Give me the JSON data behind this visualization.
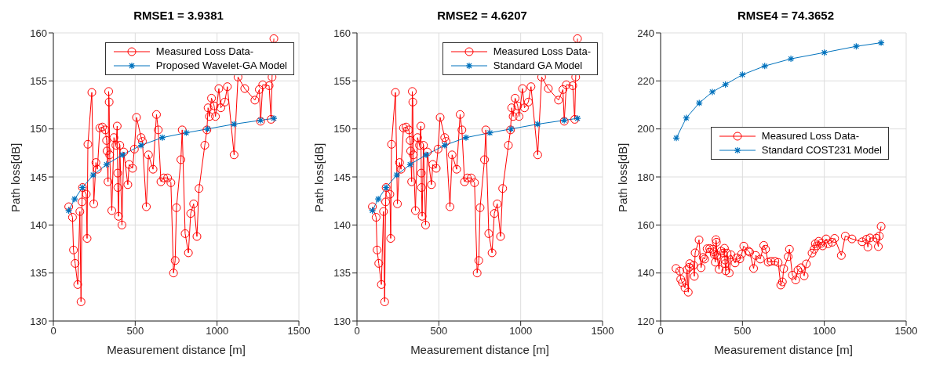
{
  "chart_data": [
    {
      "type": "line",
      "title": "RMSE1 = 3.9381",
      "xlabel": "Measurement distance [m]",
      "ylabel": "Path loss[dB]",
      "xlim": [
        0,
        1500
      ],
      "xticks": [
        0,
        500,
        1000,
        1500
      ],
      "ylim": [
        130,
        160
      ],
      "yticks": [
        130,
        135,
        140,
        145,
        150,
        155,
        160
      ],
      "grid": true,
      "legend": "top right",
      "series": [
        {
          "name": "Measured Loss Data-",
          "color": "#ff0000",
          "marker": "circle",
          "x": [
            94,
            117,
            123,
            133,
            149,
            162,
            169,
            175,
            178,
            201,
            206,
            211,
            235,
            247,
            260,
            269,
            284,
            300,
            317,
            325,
            328,
            334,
            338,
            341,
            344,
            357,
            370,
            382,
            390,
            393,
            394,
            398,
            406,
            419,
            430,
            455,
            463,
            484,
            495,
            508,
            536,
            544,
            568,
            581,
            609,
            630,
            641,
            657,
            674,
            698,
            718,
            734,
            744,
            752,
            779,
            787,
            805,
            825,
            839,
            857,
            877,
            890,
            925,
            938,
            945,
            954,
            966,
            982,
            990,
            1011,
            1023,
            1047,
            1063,
            1104,
            1128,
            1169,
            1231,
            1258,
            1266,
            1279,
            1318,
            1330,
            1336,
            1347
          ],
          "values": [
            141.9,
            140.8,
            137.4,
            136.0,
            133.8,
            141.4,
            132.0,
            142.4,
            143.9,
            143.2,
            138.6,
            148.4,
            153.8,
            142.2,
            146.5,
            145.8,
            150.1,
            150.2,
            149.9,
            148.8,
            147.7,
            144.5,
            153.9,
            152.8,
            147.3,
            141.5,
            149.1,
            148.3,
            150.3,
            145.4,
            143.9,
            140.9,
            148.3,
            140.0,
            147.6,
            144.2,
            146.3,
            145.9,
            147.9,
            151.2,
            149.1,
            148.7,
            141.9,
            147.3,
            145.8,
            151.5,
            149.9,
            144.5,
            144.9,
            144.9,
            144.4,
            135.0,
            136.3,
            141.8,
            146.8,
            149.9,
            139.1,
            137.1,
            141.2,
            142.2,
            138.8,
            143.8,
            148.3,
            149.9,
            152.2,
            151.3,
            153.2,
            152.4,
            151.3,
            154.2,
            152.2,
            152.8,
            154.4,
            147.3,
            155.4,
            154.2,
            153.0,
            154.1,
            150.8,
            154.6,
            154.5,
            151.0,
            155.4,
            159.4
          ]
        },
        {
          "name": "Proposed Wavelet-GA Model",
          "color": "#0072bd",
          "marker": "cross",
          "x": [
            94,
            130,
            178,
            243,
            325,
            422,
            536,
            666,
            812,
            942,
            1104,
            1266,
            1347
          ],
          "values": [
            141.5,
            142.7,
            143.9,
            145.2,
            146.3,
            147.3,
            148.3,
            149.1,
            149.6,
            150.0,
            150.5,
            150.9,
            151.1
          ]
        }
      ]
    },
    {
      "type": "line",
      "title": "RMSE2 = 4.6207",
      "xlabel": "Measurement distance [m]",
      "ylabel": "Path loss[dB]",
      "xlim": [
        0,
        1500
      ],
      "xticks": [
        0,
        500,
        1000,
        1500
      ],
      "ylim": [
        130,
        160
      ],
      "yticks": [
        130,
        135,
        140,
        145,
        150,
        155,
        160
      ],
      "grid": true,
      "legend": "top right",
      "series": [
        {
          "name": "Measured Loss Data-",
          "color": "#ff0000",
          "marker": "circle",
          "x": [
            94,
            117,
            123,
            133,
            149,
            162,
            169,
            175,
            178,
            201,
            206,
            211,
            235,
            247,
            260,
            269,
            284,
            300,
            317,
            325,
            328,
            334,
            338,
            341,
            344,
            357,
            370,
            382,
            390,
            393,
            394,
            398,
            406,
            419,
            430,
            455,
            463,
            484,
            495,
            508,
            536,
            544,
            568,
            581,
            609,
            630,
            641,
            657,
            674,
            698,
            718,
            734,
            744,
            752,
            779,
            787,
            805,
            825,
            839,
            857,
            877,
            890,
            925,
            938,
            945,
            954,
            966,
            982,
            990,
            1011,
            1023,
            1047,
            1063,
            1104,
            1128,
            1169,
            1231,
            1258,
            1266,
            1279,
            1318,
            1330,
            1336,
            1347
          ],
          "values": [
            141.9,
            140.8,
            137.4,
            136.0,
            133.8,
            141.4,
            132.0,
            142.4,
            143.9,
            143.2,
            138.6,
            148.4,
            153.8,
            142.2,
            146.5,
            145.8,
            150.1,
            150.2,
            149.9,
            148.8,
            147.7,
            144.5,
            153.9,
            152.8,
            147.3,
            141.5,
            149.1,
            148.3,
            150.3,
            145.4,
            143.9,
            140.9,
            148.3,
            140.0,
            147.6,
            144.2,
            146.3,
            145.9,
            147.9,
            151.2,
            149.1,
            148.7,
            141.9,
            147.3,
            145.8,
            151.5,
            149.9,
            144.5,
            144.9,
            144.9,
            144.4,
            135.0,
            136.3,
            141.8,
            146.8,
            149.9,
            139.1,
            137.1,
            141.2,
            142.2,
            138.8,
            143.8,
            148.3,
            149.9,
            152.2,
            151.3,
            153.2,
            152.4,
            151.3,
            154.2,
            152.2,
            152.8,
            154.4,
            147.3,
            155.4,
            154.2,
            153.0,
            154.1,
            150.8,
            154.6,
            154.5,
            151.0,
            155.4,
            159.4
          ]
        },
        {
          "name": "Standard GA Model",
          "color": "#0072bd",
          "marker": "cross",
          "x": [
            94,
            130,
            178,
            243,
            325,
            422,
            536,
            666,
            812,
            942,
            1104,
            1266,
            1347
          ],
          "values": [
            141.5,
            142.7,
            143.9,
            145.2,
            146.3,
            147.3,
            148.3,
            149.1,
            149.6,
            150.0,
            150.5,
            150.9,
            151.1
          ]
        }
      ]
    },
    {
      "type": "line",
      "title": "RMSE4 = 74.3652",
      "xlabel": "Measurement distance [m]",
      "ylabel": "Path loss[dB]",
      "xlim": [
        0,
        1500
      ],
      "xticks": [
        0,
        500,
        1000,
        1500
      ],
      "ylim": [
        120,
        240
      ],
      "yticks": [
        120,
        140,
        160,
        180,
        200,
        220,
        240
      ],
      "grid": true,
      "legend": "right",
      "series": [
        {
          "name": "Measured Loss Data-",
          "color": "#ff0000",
          "marker": "circle",
          "x": [
            94,
            117,
            123,
            133,
            149,
            162,
            169,
            175,
            178,
            201,
            206,
            211,
            235,
            247,
            260,
            269,
            284,
            300,
            317,
            325,
            328,
            334,
            338,
            341,
            344,
            357,
            370,
            382,
            390,
            393,
            394,
            398,
            406,
            419,
            430,
            455,
            463,
            484,
            495,
            508,
            536,
            544,
            568,
            581,
            609,
            630,
            641,
            657,
            674,
            698,
            718,
            734,
            744,
            752,
            779,
            787,
            805,
            825,
            839,
            857,
            877,
            890,
            925,
            938,
            945,
            954,
            966,
            982,
            990,
            1011,
            1023,
            1047,
            1063,
            1104,
            1128,
            1169,
            1231,
            1258,
            1266,
            1279,
            1318,
            1330,
            1336,
            1347
          ],
          "values": [
            141.9,
            140.8,
            137.4,
            136.0,
            133.8,
            141.4,
            132.0,
            142.4,
            143.9,
            143.2,
            138.6,
            148.4,
            153.8,
            142.2,
            146.5,
            145.8,
            150.1,
            150.2,
            149.9,
            148.8,
            147.7,
            144.5,
            153.9,
            152.8,
            147.3,
            141.5,
            149.1,
            148.3,
            150.3,
            145.4,
            143.9,
            140.9,
            148.3,
            140.0,
            147.6,
            144.2,
            146.3,
            145.9,
            147.9,
            151.2,
            149.1,
            148.7,
            141.9,
            147.3,
            145.8,
            151.5,
            149.9,
            144.5,
            144.9,
            144.9,
            144.4,
            135.0,
            136.3,
            141.8,
            146.8,
            149.9,
            139.1,
            137.1,
            141.2,
            142.2,
            138.8,
            143.8,
            148.3,
            149.9,
            152.2,
            151.3,
            153.2,
            152.4,
            151.3,
            154.2,
            152.2,
            152.8,
            154.4,
            147.3,
            155.4,
            154.2,
            153.0,
            154.1,
            150.8,
            154.6,
            154.5,
            151.0,
            155.4,
            159.4
          ]
        },
        {
          "name": "Standard COST231 Model",
          "color": "#0072bd",
          "marker": "cross",
          "x": [
            96,
            157,
            236,
            316,
            396,
            500,
            636,
            796,
            1000,
            1195,
            1347
          ],
          "values": [
            196.2,
            204.6,
            210.8,
            215.4,
            218.5,
            222.6,
            226.2,
            229.2,
            231.8,
            234.4,
            235.9
          ]
        }
      ]
    }
  ]
}
